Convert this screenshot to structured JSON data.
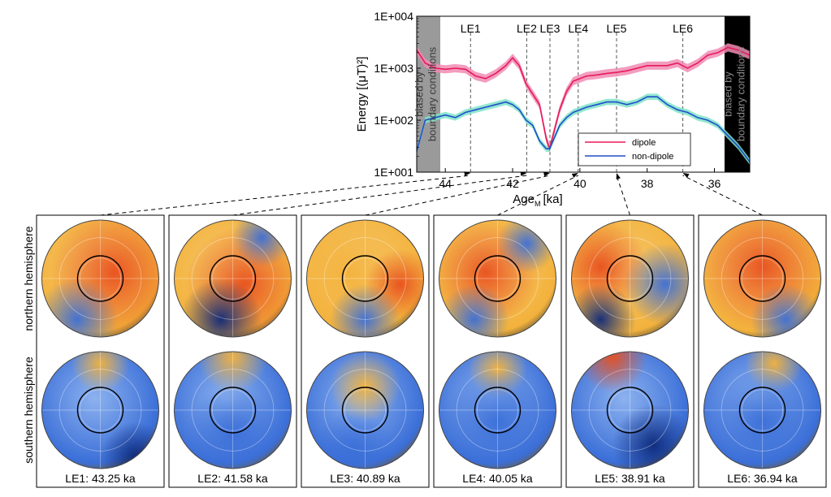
{
  "chart_data": {
    "type": "line",
    "ylabel": "Energy [(μT)²]",
    "xlabel_main": "Age",
    "xlabel_sub": "M",
    "xlabel_unit": "[ka]",
    "x_range": [
      44.85,
      34.95
    ],
    "y_range_log10": [
      1,
      4
    ],
    "y_scale": "log",
    "yticks": [
      {
        "value": 4,
        "label": "1E+004"
      },
      {
        "value": 3,
        "label": "1E+003"
      },
      {
        "value": 2,
        "label": "1E+002"
      },
      {
        "value": 1,
        "label": "1E+001"
      }
    ],
    "xticks": [
      {
        "value": 44,
        "label": "44"
      },
      {
        "value": 42,
        "label": "42"
      },
      {
        "value": 40,
        "label": "40"
      },
      {
        "value": 38,
        "label": "38"
      },
      {
        "value": 36,
        "label": "36"
      }
    ],
    "shaded_regions": [
      {
        "from": 44.85,
        "to": 44.15,
        "color": "#9a9a9a",
        "label": "biased by boundary conditions",
        "text_color": "#3a3a3a"
      },
      {
        "from": 35.7,
        "to": 34.95,
        "color": "#000000",
        "label": "biased by boundary conditions",
        "text_color": "#8a8a8a"
      }
    ],
    "events": [
      {
        "name": "LE1",
        "age": 43.25
      },
      {
        "name": "LE2",
        "age": 41.58
      },
      {
        "name": "LE3",
        "age": 40.89
      },
      {
        "name": "LE4",
        "age": 40.05
      },
      {
        "name": "LE5",
        "age": 38.91
      },
      {
        "name": "LE6",
        "age": 36.94
      }
    ],
    "series": [
      {
        "name": "dipole",
        "color": "#e8195a",
        "band_color": "#f08cb4",
        "x": [
          44.85,
          44.6,
          44.3,
          44.0,
          43.7,
          43.4,
          43.1,
          42.8,
          42.5,
          42.2,
          42.0,
          41.8,
          41.6,
          41.4,
          41.2,
          41.0,
          40.9,
          40.8,
          40.6,
          40.4,
          40.2,
          40.0,
          39.8,
          39.5,
          39.2,
          38.9,
          38.6,
          38.3,
          38.0,
          37.7,
          37.4,
          37.1,
          36.8,
          36.5,
          36.2,
          35.9,
          35.6,
          35.3,
          34.95
        ],
        "y_log10": [
          3.35,
          3.1,
          3.0,
          2.98,
          3.0,
          2.98,
          2.85,
          2.8,
          2.9,
          3.05,
          3.2,
          3.05,
          2.7,
          2.5,
          2.3,
          1.65,
          1.45,
          1.7,
          2.2,
          2.55,
          2.75,
          2.8,
          2.85,
          2.87,
          2.9,
          2.92,
          2.95,
          3.0,
          3.05,
          3.05,
          3.05,
          3.1,
          3.0,
          3.1,
          3.25,
          3.3,
          3.4,
          3.35,
          3.25
        ],
        "band": 0.08
      },
      {
        "name": "non-dipole",
        "color": "#1f4fc8",
        "band_color": "#7fe3c9",
        "x": [
          44.85,
          44.6,
          44.3,
          44.0,
          43.7,
          43.4,
          43.1,
          42.8,
          42.5,
          42.2,
          42.0,
          41.8,
          41.6,
          41.4,
          41.2,
          41.0,
          40.9,
          40.8,
          40.6,
          40.4,
          40.2,
          40.0,
          39.8,
          39.5,
          39.2,
          38.9,
          38.6,
          38.3,
          38.0,
          37.7,
          37.4,
          37.1,
          36.8,
          36.5,
          36.2,
          35.9,
          35.6,
          35.3,
          34.95
        ],
        "y_log10": [
          1.4,
          2.0,
          2.05,
          2.1,
          2.05,
          2.15,
          2.2,
          2.25,
          2.3,
          2.35,
          2.3,
          2.2,
          2.0,
          1.9,
          1.6,
          1.45,
          1.45,
          1.6,
          1.9,
          2.05,
          2.15,
          2.2,
          2.25,
          2.3,
          2.35,
          2.35,
          2.3,
          2.35,
          2.45,
          2.45,
          2.3,
          2.2,
          2.15,
          2.05,
          2.0,
          1.9,
          1.7,
          1.5,
          1.2
        ],
        "band": 0.06
      }
    ],
    "legend": {
      "placement": "lower-right",
      "entries": [
        "dipole",
        "non-dipole"
      ]
    }
  },
  "maps": {
    "row_labels": [
      "northern hemisphere",
      "southern hemisphere"
    ],
    "panels": [
      {
        "caption": "LE1: 43.25 ka",
        "north": "LE1 north",
        "south": "LE1 south"
      },
      {
        "caption": "LE2: 41.58 ka",
        "north": "LE2 north",
        "south": "LE2 south"
      },
      {
        "caption": "LE3: 40.89 ka",
        "north": "LE3 north",
        "south": "LE3 south"
      },
      {
        "caption": "LE4: 40.05 ka",
        "north": "LE4 north",
        "south": "LE4 south"
      },
      {
        "caption": "LE5: 38.91 ka",
        "north": "LE5 north",
        "south": "LE5 south"
      },
      {
        "caption": "LE6: 36.94 ka",
        "north": "LE6 north",
        "south": "LE6 south"
      }
    ],
    "colors": {
      "positive": "#e8501e",
      "mid_positive": "#f3b23c",
      "neutral": "#f4f4f4",
      "negative": "#3b6fd8",
      "deep_negative": "#0e2a7a"
    }
  }
}
